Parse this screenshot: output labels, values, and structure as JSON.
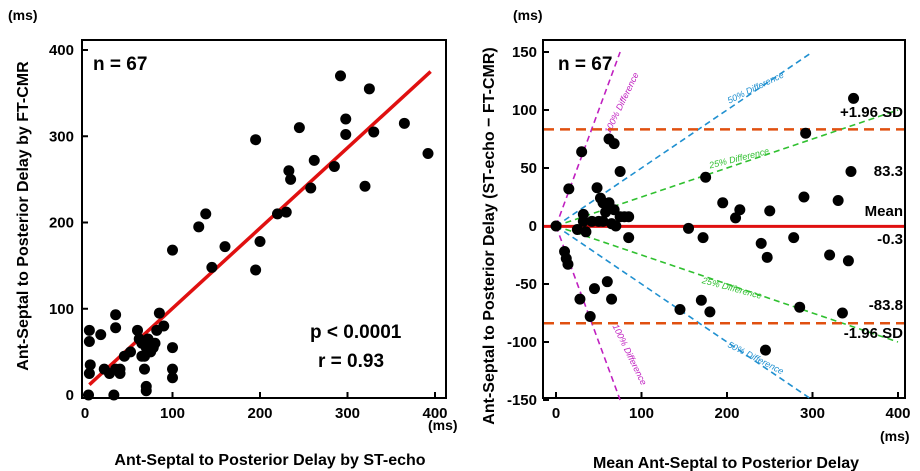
{
  "chart_data": [
    {
      "type": "scatter",
      "ylabel_unit": "(ms)",
      "xlabel_unit": "(ms)",
      "ylabel": "Ant-Septal to Posterior Delay by FT-CMR",
      "xlabel": "Ant-Septal to Posterior Delay by ST-echo",
      "xlim": [
        0,
        400
      ],
      "ylim": [
        -15,
        410
      ],
      "xticks": [
        "0",
        "100",
        "200",
        "300",
        "400"
      ],
      "yticks": [
        "0",
        "100",
        "200",
        "300",
        "400"
      ],
      "xtick_values": [
        0,
        100,
        200,
        300,
        400
      ],
      "ytick_values": [
        0,
        100,
        200,
        300,
        400
      ],
      "n_label": "n = 67",
      "p_label": "p < 0.0001",
      "r_label": "r = 0.93",
      "regression_line": {
        "x": [
          5,
          395
        ],
        "y": [
          12,
          375
        ],
        "color": "#e01010"
      },
      "points": [
        [
          5,
          75
        ],
        [
          5,
          62
        ],
        [
          6,
          35
        ],
        [
          5,
          25
        ],
        [
          4,
          0
        ],
        [
          18,
          70
        ],
        [
          22,
          30
        ],
        [
          28,
          25
        ],
        [
          35,
          93
        ],
        [
          35,
          78
        ],
        [
          33,
          0
        ],
        [
          35,
          30
        ],
        [
          40,
          30
        ],
        [
          40,
          25
        ],
        [
          45,
          45
        ],
        [
          52,
          50
        ],
        [
          60,
          75
        ],
        [
          62,
          65
        ],
        [
          65,
          60
        ],
        [
          70,
          55
        ],
        [
          68,
          45
        ],
        [
          65,
          45
        ],
        [
          68,
          30
        ],
        [
          70,
          10
        ],
        [
          70,
          5
        ],
        [
          72,
          65
        ],
        [
          75,
          50
        ],
        [
          78,
          55
        ],
        [
          80,
          60
        ],
        [
          82,
          75
        ],
        [
          85,
          95
        ],
        [
          90,
          80
        ],
        [
          100,
          55
        ],
        [
          100,
          30
        ],
        [
          100,
          20
        ],
        [
          100,
          168
        ],
        [
          130,
          195
        ],
        [
          138,
          210
        ],
        [
          145,
          148
        ],
        [
          160,
          172
        ],
        [
          195,
          296
        ],
        [
          195,
          145
        ],
        [
          200,
          178
        ],
        [
          220,
          210
        ],
        [
          230,
          212
        ],
        [
          233,
          260
        ],
        [
          235,
          250
        ],
        [
          245,
          310
        ],
        [
          258,
          240
        ],
        [
          262,
          272
        ],
        [
          285,
          265
        ],
        [
          292,
          370
        ],
        [
          298,
          320
        ],
        [
          298,
          302
        ],
        [
          320,
          242
        ],
        [
          325,
          355
        ],
        [
          330,
          305
        ],
        [
          365,
          315
        ],
        [
          392,
          280
        ]
      ]
    },
    {
      "type": "scatter",
      "ylabel_unit": "(ms)",
      "xlabel_unit": "(ms)",
      "ylabel": "Ant-Septal to Posterior Delay (ST-echo − FT-CMR)",
      "xlabel": "Mean Ant-Septal to Posterior Delay",
      "xlim": [
        -5,
        400
      ],
      "ylim": [
        -155,
        155
      ],
      "xticks": [
        "0",
        "100",
        "200",
        "300",
        "400"
      ],
      "yticks": [
        "-150",
        "-100",
        "-50",
        "0",
        "50",
        "100",
        "150"
      ],
      "xtick_values": [
        0,
        100,
        200,
        300,
        400
      ],
      "ytick_values": [
        -150,
        -100,
        -50,
        0,
        50,
        100,
        150
      ],
      "n_label": "n = 67",
      "mean": {
        "value": -0.3,
        "label": "Mean",
        "value_label": "-0.3",
        "color": "#e01010"
      },
      "upper_loa": {
        "value": 83.3,
        "label": "+1.96 SD",
        "value_label": "83.3",
        "color": "#e05010"
      },
      "lower_loa": {
        "value": -83.8,
        "label": "-1.96 SD",
        "value_label": "-83.8",
        "color": "#e05010"
      },
      "reference_lines": [
        {
          "label": "100% Difference",
          "slope": 2.0,
          "color": "#c020c0"
        },
        {
          "label": "50% Difference",
          "slope": 0.5,
          "color": "#2090d0"
        },
        {
          "label": "25% Difference",
          "slope": 0.25,
          "color": "#30c030"
        }
      ],
      "points": [
        [
          0,
          0
        ],
        [
          10,
          -22
        ],
        [
          12,
          -28
        ],
        [
          14,
          -33
        ],
        [
          15,
          32
        ],
        [
          25,
          -3
        ],
        [
          28,
          -63
        ],
        [
          30,
          64
        ],
        [
          32,
          4
        ],
        [
          32,
          10
        ],
        [
          35,
          -5
        ],
        [
          40,
          -78
        ],
        [
          42,
          4
        ],
        [
          45,
          -54
        ],
        [
          48,
          33
        ],
        [
          50,
          4
        ],
        [
          52,
          24
        ],
        [
          55,
          20
        ],
        [
          55,
          4
        ],
        [
          58,
          12
        ],
        [
          60,
          -48
        ],
        [
          62,
          75
        ],
        [
          62,
          20
        ],
        [
          65,
          2
        ],
        [
          65,
          -63
        ],
        [
          68,
          71
        ],
        [
          68,
          14
        ],
        [
          70,
          0
        ],
        [
          75,
          47
        ],
        [
          75,
          8
        ],
        [
          80,
          8
        ],
        [
          85,
          8
        ],
        [
          85,
          -10
        ],
        [
          145,
          -72
        ],
        [
          155,
          -2
        ],
        [
          170,
          -64
        ],
        [
          172,
          -10
        ],
        [
          175,
          42
        ],
        [
          180,
          -74
        ],
        [
          195,
          20
        ],
        [
          210,
          7
        ],
        [
          215,
          14
        ],
        [
          240,
          -15
        ],
        [
          245,
          -107
        ],
        [
          247,
          -27
        ],
        [
          250,
          13
        ],
        [
          278,
          -10
        ],
        [
          285,
          -70
        ],
        [
          290,
          25
        ],
        [
          292,
          80
        ],
        [
          320,
          -25
        ],
        [
          330,
          22
        ],
        [
          335,
          -75
        ],
        [
          342,
          -30
        ],
        [
          345,
          47
        ],
        [
          348,
          110
        ]
      ]
    }
  ]
}
